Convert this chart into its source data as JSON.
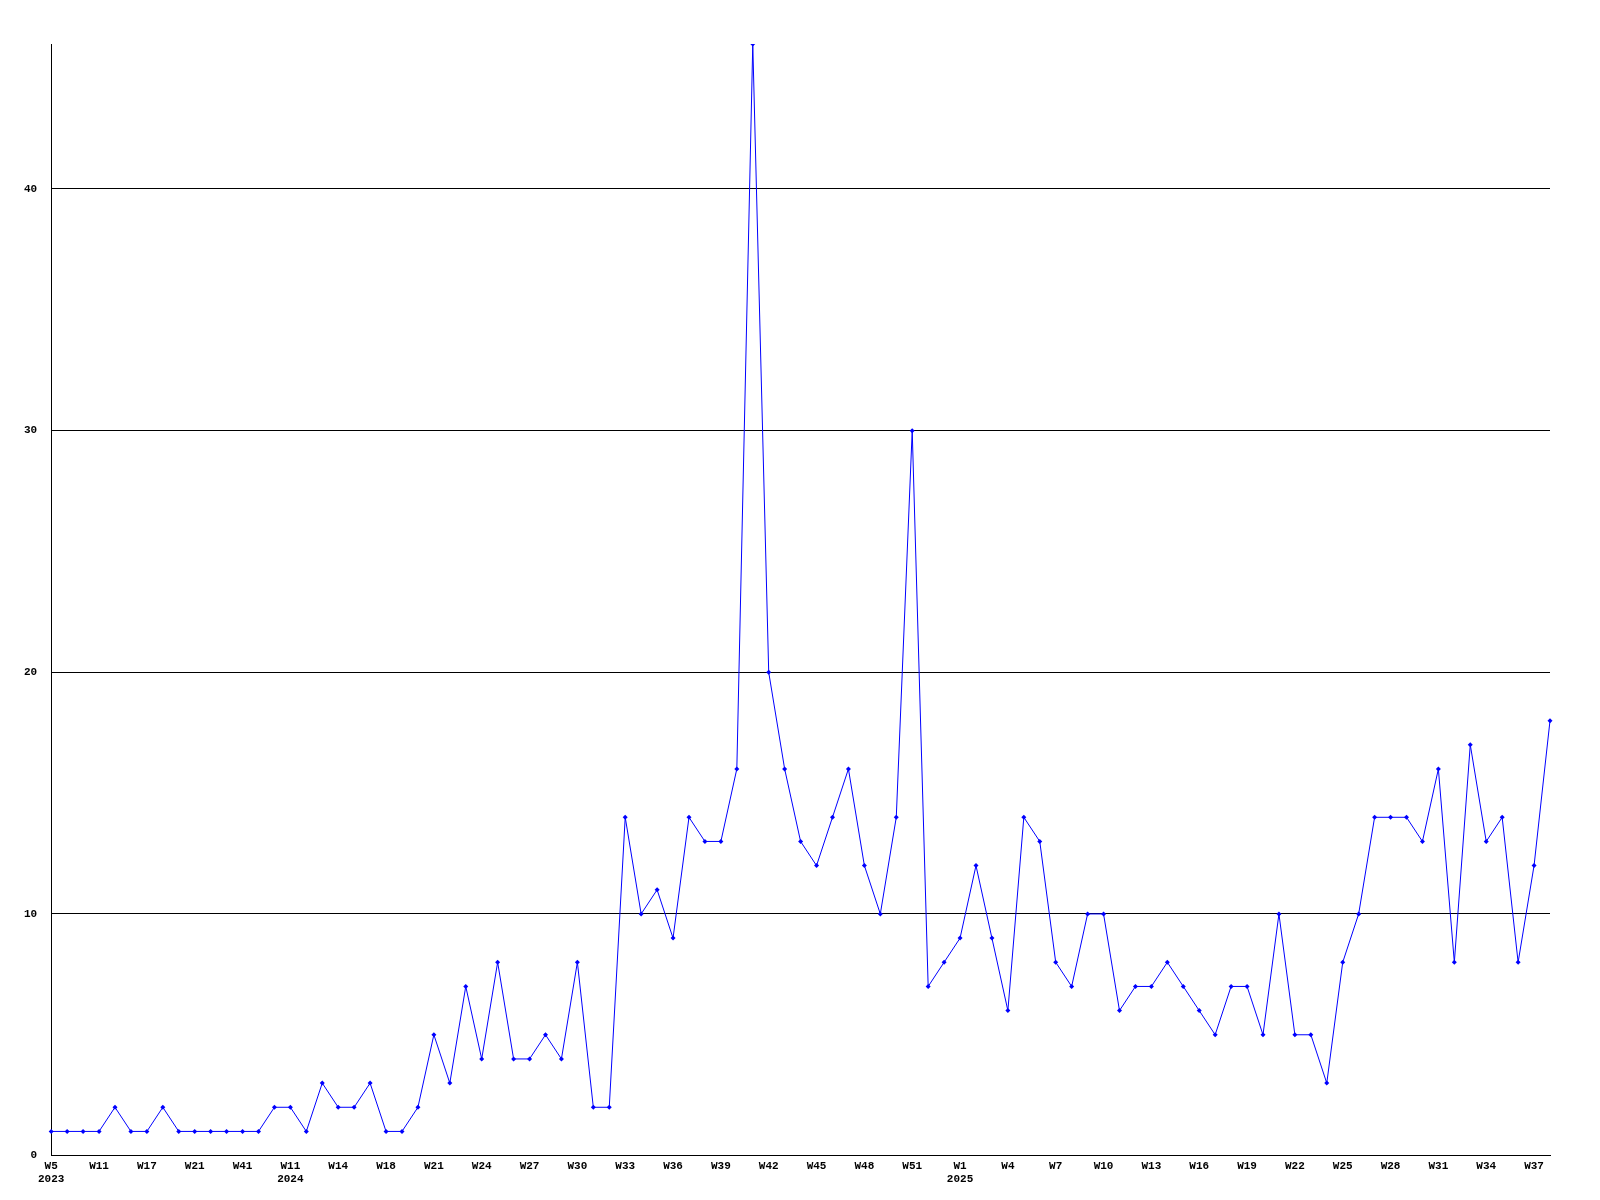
{
  "chart_data": {
    "type": "line",
    "categories": [
      "W5\n2023",
      null,
      null,
      "W11",
      null,
      null,
      "W17",
      null,
      null,
      "W21",
      null,
      null,
      "W41",
      null,
      null,
      "W11\n2024",
      null,
      null,
      "W14",
      null,
      null,
      "W18",
      null,
      null,
      "W21",
      null,
      null,
      "W24",
      null,
      null,
      "W27",
      null,
      null,
      "W30",
      null,
      null,
      "W33",
      null,
      null,
      "W36",
      null,
      null,
      "W39",
      null,
      null,
      "W42",
      null,
      null,
      "W45",
      null,
      null,
      "W48",
      null,
      null,
      "W51",
      null,
      null,
      "W1\n2025",
      null,
      null,
      "W4",
      null,
      null,
      "W7",
      null,
      null,
      "W10",
      null,
      null,
      "W13",
      null,
      null,
      "W16",
      null,
      null,
      "W19",
      null,
      null,
      "W22",
      null,
      null,
      "W25",
      null,
      null,
      "W28",
      null,
      null,
      "W31",
      null,
      null,
      "W34",
      null,
      null,
      "W37",
      null
    ],
    "series": [
      {
        "color": "#0000ff",
        "values": [
          1,
          1,
          1,
          1,
          2,
          1,
          1,
          2,
          1,
          1,
          1,
          1,
          1,
          1,
          2,
          2,
          1,
          3,
          2,
          2,
          3,
          1,
          1,
          2,
          5,
          3,
          7,
          4,
          8,
          4,
          4,
          5,
          4,
          8,
          2,
          2,
          14,
          10,
          11,
          9,
          14,
          13,
          13,
          16,
          46,
          20,
          16,
          13,
          12,
          14,
          16,
          12,
          10,
          14,
          30,
          7,
          8,
          9,
          12,
          9,
          6,
          14,
          13,
          8,
          7,
          10,
          10,
          6,
          7,
          7,
          8,
          7,
          6,
          5,
          7,
          7,
          5,
          10,
          5,
          5,
          3,
          8,
          10,
          14,
          14,
          14,
          13,
          16,
          8,
          17,
          13,
          14,
          8,
          12,
          18
        ]
      }
    ],
    "ylim": [
      0,
      46
    ],
    "yticks": [
      0,
      10,
      20,
      30,
      40
    ],
    "grid": "y",
    "legend": false,
    "marker": "diamond",
    "line_style": "solid"
  }
}
